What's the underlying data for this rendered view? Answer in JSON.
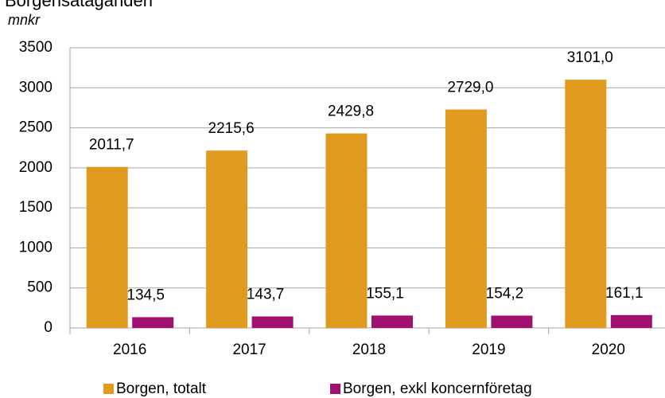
{
  "chart_data": {
    "type": "bar",
    "title": "Borgensåtaganden",
    "subtitle": "mnkr",
    "categories": [
      "2016",
      "2017",
      "2018",
      "2019",
      "2020"
    ],
    "series": [
      {
        "name": "Borgen, totalt",
        "color": "#e09b1e",
        "values": [
          2011.7,
          2215.6,
          2429.8,
          2729.0,
          3101.0
        ],
        "value_labels": [
          "2011,7",
          "2215,6",
          "2429,8",
          "2729,0",
          "3101,0"
        ]
      },
      {
        "name": "Borgen, exkl koncernföretag",
        "color": "#a0106f",
        "values": [
          134.5,
          143.7,
          155.1,
          154.2,
          161.1
        ],
        "value_labels": [
          "134,5",
          "143,7",
          "155,1",
          "154,2",
          "161,1"
        ]
      }
    ],
    "ylim": [
      0,
      3500
    ],
    "yticks": [
      0,
      500,
      1000,
      1500,
      2000,
      2500,
      3000,
      3500
    ],
    "grid": true,
    "legend": "bottom"
  }
}
